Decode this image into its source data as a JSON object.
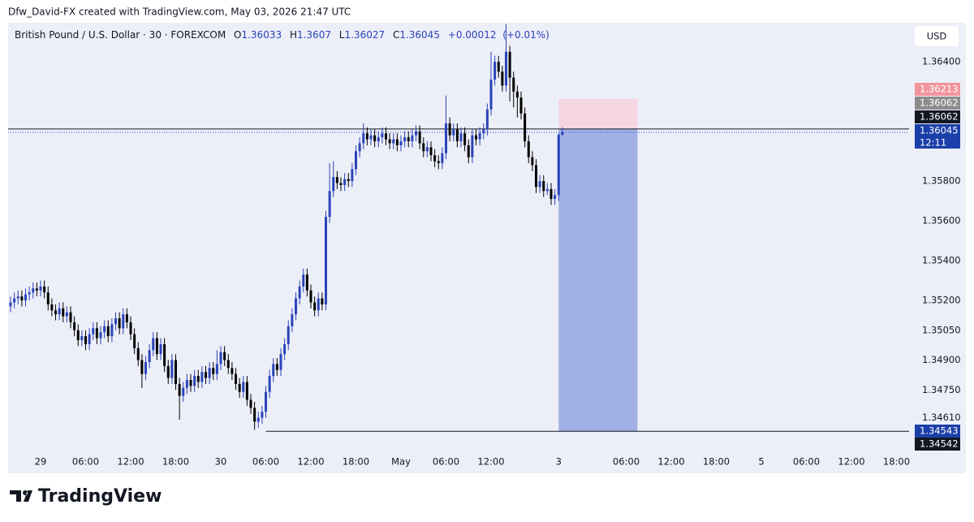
{
  "chart_data": {
    "type": "candlestick",
    "attribution": "Dfw_David-FX created with TradingView.com, May 03, 2026 21:47 UTC",
    "symbol": "British Pound / U.S. Dollar · 30 · FOREXCOM",
    "ohlc_labels": [
      "O",
      "H",
      "L",
      "C"
    ],
    "change": {
      "value": 0.00012,
      "label": "+0.00012"
    },
    "change_pct": {
      "value": 0.01,
      "label": "(+0.01%)"
    },
    "currency": "USD",
    "watermark": "TradingView",
    "countdown": "12:11",
    "up_color": "#2a44b8",
    "down_color": "#000000",
    "xlim": [
      -8.65,
      231.35
    ],
    "ylim": [
      1.34445,
      1.36588
    ],
    "xticks": [
      {
        "value": 0,
        "label": "29"
      },
      {
        "value": 12,
        "label": "06:00"
      },
      {
        "value": 24,
        "label": "12:00"
      },
      {
        "value": 36,
        "label": "18:00"
      },
      {
        "value": 48,
        "label": "30"
      },
      {
        "value": 60,
        "label": "06:00"
      },
      {
        "value": 72,
        "label": "12:00"
      },
      {
        "value": 84,
        "label": "18:00"
      },
      {
        "value": 96,
        "label": "May"
      },
      {
        "value": 108,
        "label": "06:00"
      },
      {
        "value": 120,
        "label": "12:00"
      },
      {
        "value": 138,
        "label": "3"
      },
      {
        "value": 156,
        "label": "06:00"
      },
      {
        "value": 168,
        "label": "12:00"
      },
      {
        "value": 180,
        "label": "18:00"
      },
      {
        "value": 192,
        "label": "5"
      },
      {
        "value": 204,
        "label": "06:00"
      },
      {
        "value": 216,
        "label": "12:00"
      },
      {
        "value": 228,
        "label": "18:00"
      }
    ],
    "yticks": [
      {
        "value": 1.364,
        "label": "1.36400"
      },
      {
        "value": 1.358,
        "label": "1.35800"
      },
      {
        "value": 1.356,
        "label": "1.35600"
      },
      {
        "value": 1.354,
        "label": "1.35400"
      },
      {
        "value": 1.352,
        "label": "1.35200"
      },
      {
        "value": 1.3505,
        "label": "1.35050"
      },
      {
        "value": 1.349,
        "label": "1.34900"
      },
      {
        "value": 1.3475,
        "label": "1.34750"
      },
      {
        "value": 1.3461,
        "label": "1.34610"
      }
    ],
    "x": [
      -8,
      -7,
      -6,
      -5,
      -4,
      -3,
      -2,
      -1,
      0,
      1,
      2,
      3,
      4,
      5,
      6,
      7,
      8,
      9,
      10,
      11,
      12,
      13,
      14,
      15,
      16,
      17,
      18,
      19,
      20,
      21,
      22,
      23,
      24,
      25,
      26,
      27,
      28,
      29,
      30,
      31,
      32,
      33,
      34,
      35,
      36,
      37,
      38,
      39,
      40,
      41,
      42,
      43,
      44,
      45,
      46,
      47,
      48,
      49,
      50,
      51,
      52,
      53,
      54,
      55,
      56,
      57,
      58,
      59,
      60,
      61,
      62,
      63,
      64,
      65,
      66,
      67,
      68,
      69,
      70,
      71,
      72,
      73,
      74,
      75,
      76,
      77,
      78,
      79,
      80,
      81,
      82,
      83,
      84,
      85,
      86,
      87,
      88,
      89,
      90,
      91,
      92,
      93,
      94,
      95,
      96,
      97,
      98,
      99,
      100,
      101,
      102,
      103,
      104,
      105,
      106,
      107,
      108,
      109,
      110,
      111,
      112,
      113,
      114,
      115,
      116,
      117,
      118,
      119,
      120,
      121,
      122,
      123,
      124,
      125,
      126,
      127,
      128,
      129,
      130,
      131,
      132,
      133,
      134,
      135,
      136,
      137,
      138,
      139
    ],
    "open": [
      1.3517,
      1.3519,
      1.3521,
      1.3522,
      1.352,
      1.3523,
      1.3524,
      1.3526,
      1.3525,
      1.3527,
      1.3524,
      1.3518,
      1.3515,
      1.3513,
      1.3516,
      1.3512,
      1.3514,
      1.3509,
      1.3505,
      1.35,
      1.3502,
      1.3498,
      1.3503,
      1.3506,
      1.3501,
      1.3504,
      1.3507,
      1.3502,
      1.3508,
      1.3511,
      1.3506,
      1.3513,
      1.3509,
      1.3503,
      1.3496,
      1.349,
      1.3483,
      1.3489,
      1.3495,
      1.3501,
      1.3493,
      1.3498,
      1.3487,
      1.3481,
      1.349,
      1.3478,
      1.3472,
      1.3476,
      1.348,
      1.3477,
      1.3482,
      1.3479,
      1.3484,
      1.3481,
      1.3486,
      1.3483,
      1.3488,
      1.3494,
      1.349,
      1.3486,
      1.3483,
      1.3478,
      1.3474,
      1.3479,
      1.347,
      1.3466,
      1.3459,
      1.3461,
      1.3464,
      1.3474,
      1.3482,
      1.3488,
      1.3485,
      1.3493,
      1.3498,
      1.3507,
      1.3513,
      1.3521,
      1.3527,
      1.3533,
      1.3525,
      1.3519,
      1.3515,
      1.3521,
      1.3518,
      1.3562,
      1.3575,
      1.3582,
      1.3579,
      1.3578,
      1.3581,
      1.358,
      1.3586,
      1.3595,
      1.3599,
      1.3604,
      1.3601,
      1.3603,
      1.36,
      1.3602,
      1.3604,
      1.3601,
      1.3599,
      1.3601,
      1.3598,
      1.36,
      1.3602,
      1.36,
      1.3603,
      1.3605,
      1.3599,
      1.3595,
      1.3597,
      1.3593,
      1.359,
      1.3589,
      1.3594,
      1.3609,
      1.3603,
      1.3606,
      1.36,
      1.3604,
      1.3598,
      1.3592,
      1.3603,
      1.3601,
      1.3604,
      1.3606,
      1.3616,
      1.3631,
      1.364,
      1.3635,
      1.3628,
      1.3645,
      1.3632,
      1.3625,
      1.3622,
      1.3614,
      1.36,
      1.3592,
      1.3588,
      1.3577,
      1.358,
      1.3575,
      1.3576,
      1.3571,
      1.3573,
      1.36033
    ],
    "high": [
      1.3522,
      1.3524,
      1.3525,
      1.3525,
      1.3526,
      1.3527,
      1.3529,
      1.3529,
      1.353,
      1.353,
      1.3527,
      1.3521,
      1.3518,
      1.3519,
      1.3519,
      1.3517,
      1.3517,
      1.3512,
      1.3508,
      1.3505,
      1.3505,
      1.3506,
      1.3509,
      1.3509,
      1.3507,
      1.351,
      1.351,
      1.3511,
      1.3514,
      1.3514,
      1.3516,
      1.3516,
      1.3512,
      1.3506,
      1.3499,
      1.3493,
      1.3492,
      1.3498,
      1.3504,
      1.3504,
      1.3501,
      1.3501,
      1.349,
      1.3493,
      1.3493,
      1.3481,
      1.3479,
      1.3483,
      1.3483,
      1.3485,
      1.3485,
      1.3487,
      1.3487,
      1.3489,
      1.3489,
      1.3495,
      1.3497,
      1.3497,
      1.3493,
      1.3489,
      1.3486,
      1.3481,
      1.3482,
      1.3482,
      1.3473,
      1.3469,
      1.3464,
      1.3467,
      1.3477,
      1.3485,
      1.3491,
      1.3491,
      1.3496,
      1.3501,
      1.351,
      1.3516,
      1.3524,
      1.353,
      1.3536,
      1.3536,
      1.3528,
      1.3522,
      1.3524,
      1.3524,
      1.3565,
      1.3589,
      1.359,
      1.3585,
      1.3582,
      1.3584,
      1.3584,
      1.3589,
      1.3598,
      1.3602,
      1.3609,
      1.3607,
      1.3606,
      1.3606,
      1.3605,
      1.3607,
      1.3607,
      1.3604,
      1.3604,
      1.3604,
      1.3603,
      1.3605,
      1.3605,
      1.3606,
      1.3608,
      1.3608,
      1.3602,
      1.36,
      1.36,
      1.3596,
      1.3593,
      1.3597,
      1.3623,
      1.3612,
      1.3609,
      1.3609,
      1.3607,
      1.3607,
      1.3601,
      1.3606,
      1.3606,
      1.3607,
      1.3609,
      1.3619,
      1.3645,
      1.3643,
      1.3643,
      1.3638,
      1.3659,
      1.3648,
      1.3635,
      1.3628,
      1.3625,
      1.3617,
      1.3603,
      1.3595,
      1.3591,
      1.3583,
      1.3583,
      1.3579,
      1.3579,
      1.3576,
      1.3604,
      1.3607
    ],
    "low": [
      1.3514,
      1.3516,
      1.3518,
      1.3517,
      1.3517,
      1.352,
      1.3521,
      1.3522,
      1.3522,
      1.3521,
      1.3515,
      1.3512,
      1.351,
      1.351,
      1.3509,
      1.3509,
      1.3506,
      1.3502,
      1.3497,
      1.3497,
      1.3495,
      1.3495,
      1.35,
      1.3498,
      1.3498,
      1.3501,
      1.3499,
      1.3499,
      1.3505,
      1.3503,
      1.3503,
      1.3506,
      1.35,
      1.3493,
      1.3487,
      1.3476,
      1.348,
      1.3486,
      1.3492,
      1.349,
      1.349,
      1.3484,
      1.3478,
      1.3478,
      1.3475,
      1.346,
      1.3469,
      1.3473,
      1.3474,
      1.3474,
      1.3476,
      1.3476,
      1.3478,
      1.3478,
      1.348,
      1.348,
      1.3485,
      1.3487,
      1.3483,
      1.348,
      1.3475,
      1.3471,
      1.3471,
      1.3467,
      1.3463,
      1.3455,
      1.3456,
      1.3458,
      1.3461,
      1.3471,
      1.3479,
      1.3482,
      1.3482,
      1.349,
      1.3495,
      1.3504,
      1.351,
      1.3518,
      1.3524,
      1.3522,
      1.3516,
      1.3512,
      1.3512,
      1.3515,
      1.3515,
      1.3559,
      1.3572,
      1.3576,
      1.3575,
      1.3575,
      1.3577,
      1.3577,
      1.3583,
      1.3592,
      1.3596,
      1.3598,
      1.3598,
      1.3597,
      1.3597,
      1.3599,
      1.3598,
      1.3596,
      1.3596,
      1.3595,
      1.3595,
      1.3597,
      1.3597,
      1.3597,
      1.36,
      1.3596,
      1.3592,
      1.3592,
      1.359,
      1.3587,
      1.3586,
      1.3586,
      1.3591,
      1.36,
      1.36,
      1.3597,
      1.3597,
      1.3595,
      1.3589,
      1.3589,
      1.3598,
      1.3598,
      1.3601,
      1.3603,
      1.3613,
      1.3628,
      1.3632,
      1.3625,
      1.3625,
      1.362,
      1.3617,
      1.3612,
      1.3611,
      1.3597,
      1.3589,
      1.3585,
      1.3574,
      1.3574,
      1.3572,
      1.3573,
      1.3568,
      1.3568,
      1.357,
      1.36027
    ],
    "close": [
      1.3519,
      1.3521,
      1.3522,
      1.352,
      1.3523,
      1.3524,
      1.3526,
      1.3525,
      1.3527,
      1.3524,
      1.3518,
      1.3515,
      1.3513,
      1.3516,
      1.3512,
      1.3514,
      1.3509,
      1.3505,
      1.35,
      1.3502,
      1.3498,
      1.3503,
      1.3506,
      1.3501,
      1.3504,
      1.3507,
      1.3502,
      1.3508,
      1.3511,
      1.3506,
      1.3513,
      1.3509,
      1.3503,
      1.3496,
      1.349,
      1.3483,
      1.3489,
      1.3495,
      1.3501,
      1.3493,
      1.3498,
      1.3487,
      1.3481,
      1.349,
      1.3478,
      1.3472,
      1.3476,
      1.348,
      1.3477,
      1.3482,
      1.3479,
      1.3484,
      1.3481,
      1.3486,
      1.3483,
      1.3488,
      1.3494,
      1.349,
      1.3486,
      1.3483,
      1.3478,
      1.3474,
      1.3479,
      1.347,
      1.3466,
      1.3459,
      1.3461,
      1.3464,
      1.3474,
      1.3482,
      1.3488,
      1.3485,
      1.3493,
      1.3498,
      1.3507,
      1.3513,
      1.3521,
      1.3527,
      1.3533,
      1.3525,
      1.3519,
      1.3515,
      1.3521,
      1.3518,
      1.3562,
      1.3575,
      1.3582,
      1.3579,
      1.3578,
      1.3581,
      1.358,
      1.3586,
      1.3595,
      1.3599,
      1.3604,
      1.3601,
      1.3603,
      1.36,
      1.3602,
      1.3604,
      1.3601,
      1.3599,
      1.3601,
      1.3598,
      1.36,
      1.3602,
      1.36,
      1.3603,
      1.3605,
      1.3599,
      1.3595,
      1.3597,
      1.3593,
      1.359,
      1.3589,
      1.3594,
      1.3609,
      1.3603,
      1.3606,
      1.36,
      1.3604,
      1.3598,
      1.3592,
      1.3603,
      1.3601,
      1.3604,
      1.3606,
      1.3616,
      1.3631,
      1.364,
      1.3635,
      1.3628,
      1.3645,
      1.3632,
      1.3625,
      1.3622,
      1.3614,
      1.36,
      1.3592,
      1.3588,
      1.3577,
      1.358,
      1.3575,
      1.3576,
      1.3571,
      1.3573,
      1.36033,
      1.36045
    ],
    "position": {
      "entry": 1.36062,
      "stop": 1.36213,
      "target": 1.34543,
      "x_start": 138,
      "x_end": 159,
      "stop_color": "#f5d6e0",
      "target_color": "#a1b1e6"
    },
    "horizontal_line": {
      "value": 1.36062,
      "color": "#131722"
    },
    "ray": {
      "value": 1.34542,
      "x_start": 60,
      "color": "#131722"
    }
  }
}
